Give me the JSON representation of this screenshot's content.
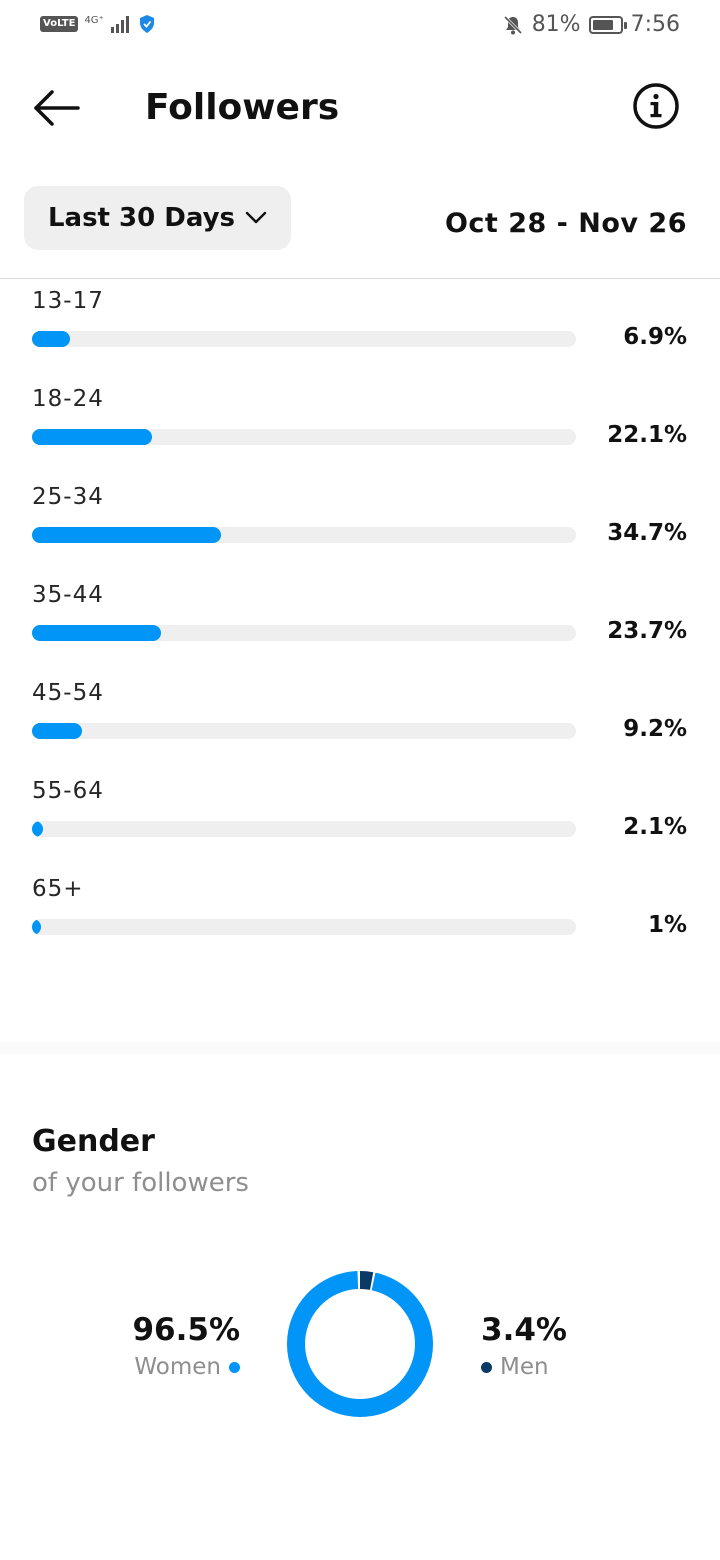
{
  "status_bar": {
    "volte": "VoLTE",
    "network": "4G⁺",
    "battery": "81%",
    "battery_level": 0.81,
    "time": "7:56",
    "icons": [
      "signal-icon",
      "shield-icon",
      "bell-off-icon",
      "battery-icon"
    ]
  },
  "header": {
    "title": "Followers",
    "back_icon": "arrow-left-icon",
    "info_icon": "info-icon"
  },
  "filter": {
    "range_label": "Last 30 Days",
    "date_range": "Oct 28 - Nov 26"
  },
  "age_groups": [
    {
      "label": "13-17",
      "value": "6.9%",
      "fraction": 0.069
    },
    {
      "label": "18-24",
      "value": "22.1%",
      "fraction": 0.221
    },
    {
      "label": "25-34",
      "value": "34.7%",
      "fraction": 0.347
    },
    {
      "label": "35-44",
      "value": "23.7%",
      "fraction": 0.237
    },
    {
      "label": "45-54",
      "value": "9.2%",
      "fraction": 0.092
    },
    {
      "label": "55-64",
      "value": "2.1%",
      "fraction": 0.021
    },
    {
      "label": "65+",
      "value": "1%",
      "fraction": 0.01
    }
  ],
  "gender": {
    "title": "Gender",
    "subtitle": "of your followers",
    "women": {
      "value": "96.5%",
      "label": "Women",
      "fraction": 0.965,
      "color": "#0095f6"
    },
    "men": {
      "value": "3.4%",
      "label": "Men",
      "fraction": 0.034,
      "color": "#0b3a67"
    }
  },
  "colors": {
    "accent": "#0095f6",
    "track": "#efefef",
    "men": "#0b3a67"
  }
}
